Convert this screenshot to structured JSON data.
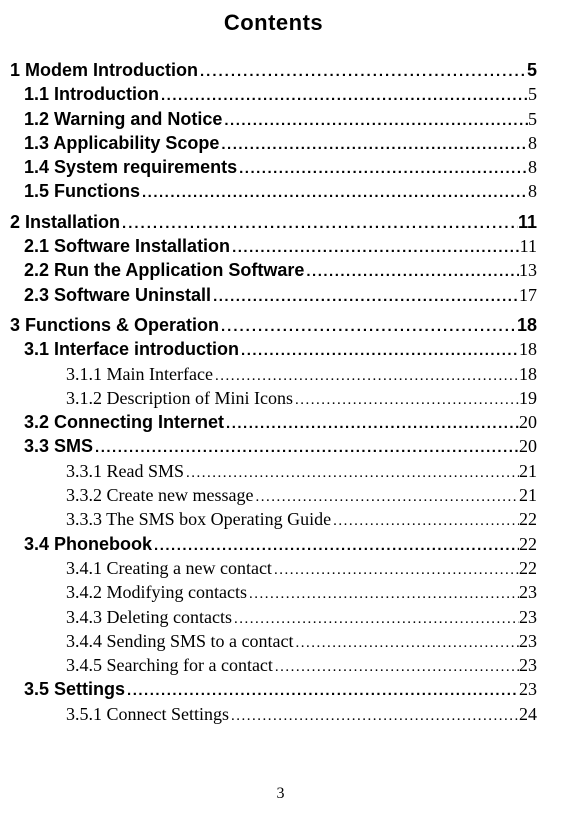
{
  "title": "Contents",
  "pageNumber": "3",
  "entries": [
    {
      "level": 1,
      "label": "1 Modem Introduction",
      "page": "5"
    },
    {
      "level": 2,
      "label": "1.1 Introduction",
      "page": "5"
    },
    {
      "level": 2,
      "label": "1.2 Warning and Notice",
      "page": "5"
    },
    {
      "level": 2,
      "label": "1.3 Applicability Scope",
      "page": "8"
    },
    {
      "level": 2,
      "label": "1.4 System requirements",
      "page": "8"
    },
    {
      "level": 2,
      "label": "1.5 Functions",
      "page": "8"
    },
    {
      "level": 1,
      "label": "2 Installation",
      "page": "11"
    },
    {
      "level": 2,
      "label": "2.1 Software Installation",
      "page": "11"
    },
    {
      "level": 2,
      "label": "2.2 Run the Application Software",
      "page": "13"
    },
    {
      "level": 2,
      "label": "2.3 Software Uninstall",
      "page": "17"
    },
    {
      "level": 1,
      "label": "3 Functions & Operation",
      "page": "18"
    },
    {
      "level": 2,
      "label": "3.1 Interface introduction",
      "page": "18"
    },
    {
      "level": 3,
      "label": "3.1.1 Main Interface",
      "page": "18"
    },
    {
      "level": 3,
      "label": "3.1.2 Description of Mini Icons",
      "page": "19"
    },
    {
      "level": 2,
      "label": "3.2 Connecting Internet",
      "page": "20"
    },
    {
      "level": 2,
      "label": "3.3 SMS",
      "page": "20"
    },
    {
      "level": 3,
      "label": "3.3.1 Read SMS",
      "page": "21"
    },
    {
      "level": 3,
      "label": "3.3.2 Create new message",
      "page": "21"
    },
    {
      "level": 3,
      "label": "3.3.3 The SMS box Operating Guide",
      "page": "22"
    },
    {
      "level": 2,
      "label": "3.4 Phonebook",
      "page": "22"
    },
    {
      "level": 3,
      "label": "3.4.1 Creating a new contact",
      "page": "22"
    },
    {
      "level": 3,
      "label": "3.4.2 Modifying contacts",
      "page": "23"
    },
    {
      "level": 3,
      "label": "3.4.3 Deleting contacts",
      "page": "23"
    },
    {
      "level": 3,
      "label": "3.4.4 Sending SMS to a contact",
      "page": "23"
    },
    {
      "level": 3,
      "label": "3.4.5 Searching for a contact",
      "page": "23"
    },
    {
      "level": 2,
      "label": "3.5 Settings",
      "page": "23"
    },
    {
      "level": 3,
      "label": "3.5.1 Connect Settings",
      "page": "24"
    }
  ]
}
